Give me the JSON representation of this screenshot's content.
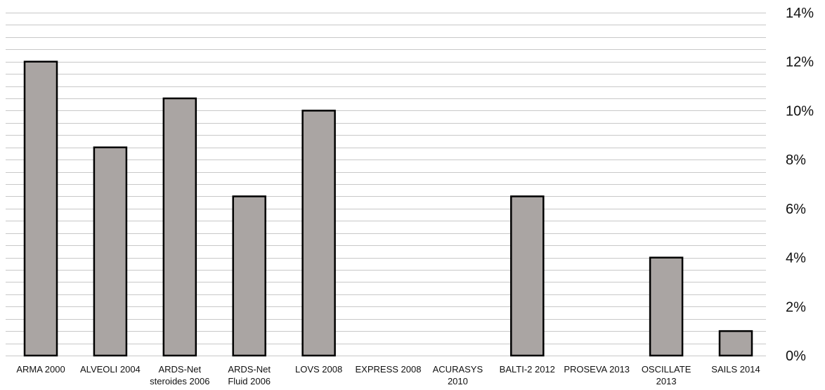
{
  "chart_data": {
    "type": "bar",
    "title": "",
    "xlabel": "",
    "ylabel": "",
    "ylim": [
      0,
      14
    ],
    "y_axis_side": "right",
    "y_ticks": [
      "0%",
      "2%",
      "4%",
      "6%",
      "8%",
      "10%",
      "12%",
      "14%"
    ],
    "minor_gridlines": true,
    "categories": [
      [
        "ARMA 2000"
      ],
      [
        "ALVEOLI 2004"
      ],
      [
        "ARDS-Net",
        "steroides 2006"
      ],
      [
        "ARDS-Net",
        "Fluid 2006"
      ],
      [
        "LOVS 2008"
      ],
      [
        "EXPRESS 2008"
      ],
      [
        "ACURASYS",
        "2010"
      ],
      [
        "BALTI-2 2012"
      ],
      [
        "PROSEVA 2013"
      ],
      [
        "OSCILLATE",
        "2013"
      ],
      [
        "SAILS 2014"
      ]
    ],
    "values": [
      12,
      8.5,
      10.5,
      6.5,
      10,
      0,
      0,
      6.5,
      0,
      4,
      1
    ],
    "colors": {
      "bar_fill": "#aaa5a3",
      "bar_stroke": "#000000",
      "grid": "#c8c8c8",
      "text": "#111111"
    }
  }
}
